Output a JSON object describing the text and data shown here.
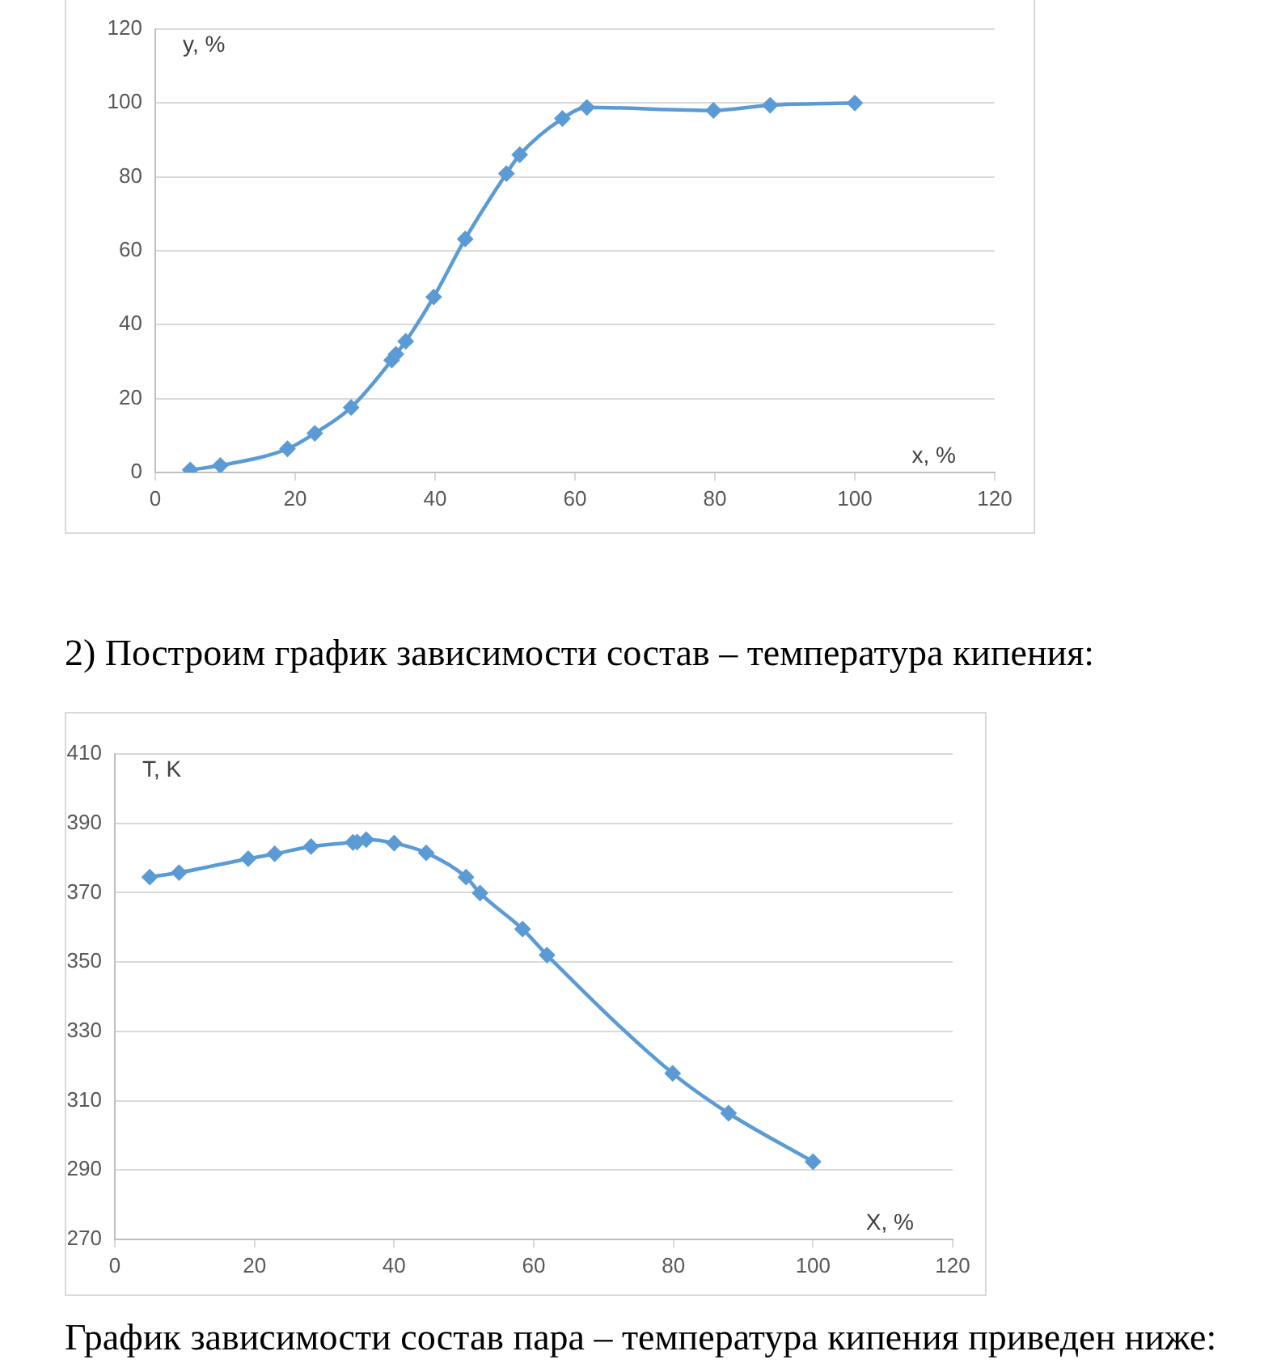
{
  "chart_data": [
    {
      "type": "line",
      "xlabel": "x, %",
      "ylabel": "y, %",
      "x": [
        5.0,
        9.3,
        18.9,
        22.8,
        28.0,
        33.8,
        34.4,
        35.8,
        39.8,
        44.3,
        50.2,
        52.1,
        58.2,
        61.7,
        79.8,
        87.9,
        100
      ],
      "values": [
        0.7,
        1.9,
        6.4,
        10.6,
        17.6,
        30.4,
        32.0,
        35.5,
        47.5,
        63.2,
        80.9,
        86.0,
        95.8,
        98.8,
        98.0,
        99.4,
        100
      ],
      "color": "#5b9bd5",
      "marker": "diamond",
      "xlim": [
        0,
        120
      ],
      "xticks": [
        0,
        20,
        40,
        60,
        80,
        100,
        120
      ],
      "ylim": [
        0,
        120
      ],
      "yticks": [
        0,
        20,
        40,
        60,
        80,
        100,
        120
      ],
      "grid": "y"
    },
    {
      "type": "line",
      "title": "2) Построим график зависимости состав – температура кипения:",
      "xlabel": "X, %",
      "ylabel": "T, K",
      "x": [
        5.0,
        9.2,
        19.1,
        22.9,
        28.1,
        34.1,
        34.7,
        36.0,
        40.0,
        44.6,
        50.3,
        52.3,
        58.4,
        61.9,
        79.9,
        87.9,
        100
      ],
      "values": [
        374.5,
        375.8,
        379.8,
        381.2,
        383.3,
        384.5,
        384.6,
        385.3,
        384.3,
        381.5,
        374.5,
        369.9,
        359.5,
        352.0,
        317.9,
        306.4,
        292.4
      ],
      "color": "#5b9bd5",
      "marker": "diamond",
      "xlim": [
        0,
        120
      ],
      "xticks": [
        0,
        20,
        40,
        60,
        80,
        100,
        120
      ],
      "ylim": [
        270,
        410
      ],
      "yticks": [
        270,
        290,
        310,
        330,
        350,
        370,
        390,
        410
      ],
      "grid": "y",
      "annotations": [
        "График зависимости состав пара – температура кипения приведен ниже:"
      ]
    }
  ]
}
